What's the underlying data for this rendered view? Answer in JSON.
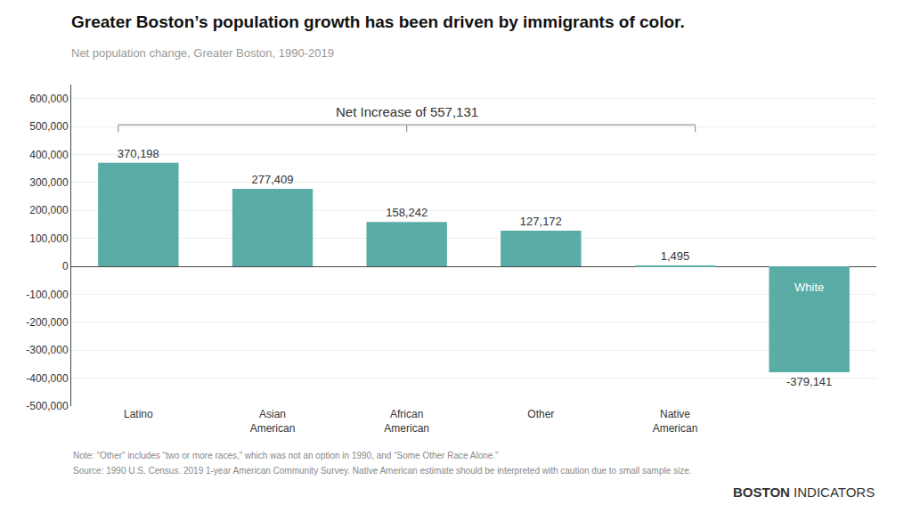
{
  "chart_data": {
    "type": "bar",
    "title": "Greater Boston’s population growth has been driven by immigrants of color.",
    "subtitle": "Net population change, Greater Boston, 1990-2019",
    "categories": [
      "Latino",
      "Asian\nAmerican",
      "African\nAmerican",
      "Other",
      "Native\nAmerican",
      null
    ],
    "values": [
      370198,
      277409,
      158242,
      127172,
      1495,
      -379141
    ],
    "value_labels": [
      "370,198",
      "277,409",
      "158,242",
      "127,172",
      "1,495",
      "-379,141"
    ],
    "data_labels": true,
    "color": "#5aada6",
    "ylim": [
      -500000,
      650000
    ],
    "yticks": [
      {
        "value": -500000,
        "label": "-500,000"
      },
      {
        "value": -400000,
        "label": "-400,000"
      },
      {
        "value": -300000,
        "label": "-300,000"
      },
      {
        "value": -200000,
        "label": "-200,000"
      },
      {
        "value": -100000,
        "label": "-100,000"
      },
      0,
      {
        "value": 100000,
        "label": "100,000"
      },
      {
        "value": 200000,
        "label": "200,000"
      },
      {
        "value": 300000,
        "label": "300,000"
      },
      {
        "value": 400000,
        "label": "400,000"
      },
      {
        "value": 500000,
        "label": "500,000"
      },
      {
        "value": 600000,
        "label": "600,000"
      }
    ],
    "grid": true,
    "bar_annotation": "White",
    "bracket_label": "Net Increase of 557,131",
    "notes": [
      "Note: “Other” includes “two or more races,” which was not an option in 1990, and “Some Other Race Alone.”",
      "Source: 1990 U.S. Census. 2019 1-year American Community Survey. Native American estimate should be interpreted with caution due to small sample size."
    ],
    "branding": [
      "BOSTON",
      "INDICATORS"
    ]
  }
}
